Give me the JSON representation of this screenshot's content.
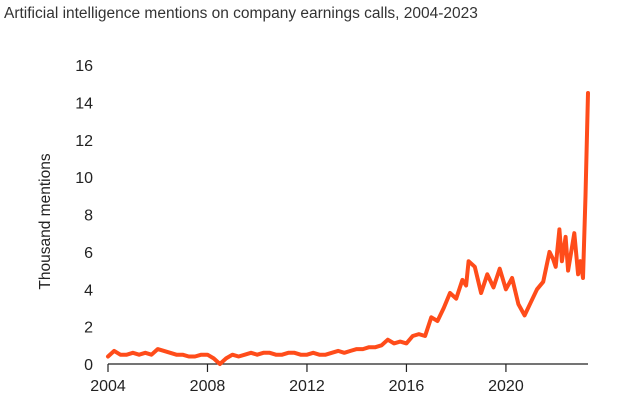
{
  "chart_data": {
    "type": "line",
    "title": "Artificial intelligence mentions on company earnings calls, 2004-2023",
    "xlabel": "",
    "ylabel": "Thousand mentions",
    "xlim": [
      2004,
      2023.3
    ],
    "ylim": [
      0,
      16
    ],
    "xticks": [
      2004,
      2008,
      2012,
      2016,
      2020
    ],
    "yticks": [
      0,
      2,
      4,
      6,
      8,
      10,
      12,
      14,
      16
    ],
    "grid": false,
    "legend": "none",
    "colors": {
      "line": "#ff4c1a",
      "axis": "#222222"
    },
    "series": [
      {
        "x": [
          2004.0,
          2004.25,
          2004.5,
          2004.75,
          2005.0,
          2005.25,
          2005.5,
          2005.75,
          2006.0,
          2006.25,
          2006.5,
          2006.75,
          2007.0,
          2007.25,
          2007.5,
          2007.75,
          2008.0,
          2008.25,
          2008.5,
          2008.75,
          2009.0,
          2009.25,
          2009.5,
          2009.75,
          2010.0,
          2010.25,
          2010.5,
          2010.75,
          2011.0,
          2011.25,
          2011.5,
          2011.75,
          2012.0,
          2012.25,
          2012.5,
          2012.75,
          2013.0,
          2013.25,
          2013.5,
          2013.75,
          2014.0,
          2014.25,
          2014.5,
          2014.75,
          2015.0,
          2015.25,
          2015.5,
          2015.75,
          2016.0,
          2016.25,
          2016.5,
          2016.75,
          2017.0,
          2017.25,
          2017.5,
          2017.75,
          2018.0,
          2018.25,
          2018.4,
          2018.5,
          2018.75,
          2019.0,
          2019.25,
          2019.5,
          2019.75,
          2020.0,
          2020.25,
          2020.5,
          2020.75,
          2021.0,
          2021.25,
          2021.5,
          2021.75,
          2021.9,
          2022.0,
          2022.15,
          2022.25,
          2022.4,
          2022.5,
          2022.75,
          2022.9,
          2023.0,
          2023.1,
          2023.2,
          2023.3
        ],
        "y": [
          0.4,
          0.7,
          0.5,
          0.5,
          0.6,
          0.5,
          0.6,
          0.5,
          0.8,
          0.7,
          0.6,
          0.5,
          0.5,
          0.4,
          0.4,
          0.5,
          0.5,
          0.3,
          0.0,
          0.3,
          0.5,
          0.4,
          0.5,
          0.6,
          0.5,
          0.6,
          0.6,
          0.5,
          0.5,
          0.6,
          0.6,
          0.5,
          0.5,
          0.6,
          0.5,
          0.5,
          0.6,
          0.7,
          0.6,
          0.7,
          0.8,
          0.8,
          0.9,
          0.9,
          1.0,
          1.3,
          1.1,
          1.2,
          1.1,
          1.5,
          1.6,
          1.5,
          2.5,
          2.3,
          3.0,
          3.8,
          3.5,
          4.5,
          4.2,
          5.5,
          5.2,
          3.8,
          4.8,
          4.1,
          5.1,
          4.0,
          4.6,
          3.2,
          2.6,
          3.3,
          4.0,
          4.4,
          6.0,
          5.6,
          5.2,
          7.2,
          5.5,
          6.8,
          5.0,
          7.0,
          4.8,
          5.5,
          4.6,
          9.0,
          14.5
        ]
      }
    ]
  }
}
